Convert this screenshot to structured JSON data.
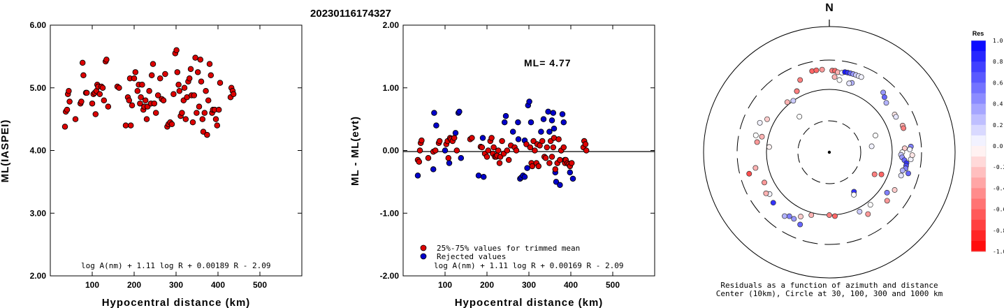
{
  "title": "20230116174327",
  "chart_data": [
    {
      "type": "scatter",
      "xlabel": "Hypocentral distance (km)",
      "ylabel": "ML(IASPEI)",
      "xticks": [
        "100",
        "200",
        "300",
        "400",
        "500"
      ],
      "yticks": [
        "2.00",
        "3.00",
        "4.00",
        "5.00",
        "6.00"
      ],
      "xlim": [
        0,
        600
      ],
      "ylim": [
        2,
        6
      ],
      "formula": "log A(nm) + 1.11 log R + 0.00189 R - 2.09",
      "point_color": "#dd0000",
      "points": [
        [
          35,
          4.38
        ],
        [
          37,
          4.62
        ],
        [
          40,
          4.65
        ],
        [
          42,
          4.9
        ],
        [
          44,
          4.95
        ],
        [
          46,
          4.78
        ],
        [
          60,
          4.5
        ],
        [
          72,
          4.75
        ],
        [
          74,
          4.78
        ],
        [
          77,
          5.4
        ],
        [
          79,
          5.2
        ],
        [
          85,
          4.92
        ],
        [
          87,
          4.92
        ],
        [
          100,
          4.75
        ],
        [
          103,
          4.9
        ],
        [
          106,
          4.92
        ],
        [
          108,
          4.58
        ],
        [
          110,
          4.95
        ],
        [
          112,
          5.05
        ],
        [
          114,
          5.02
        ],
        [
          118,
          4.9
        ],
        [
          122,
          5.02
        ],
        [
          125,
          5.0
        ],
        [
          128,
          4.8
        ],
        [
          132,
          5.42
        ],
        [
          134,
          5.45
        ],
        [
          138,
          4.7
        ],
        [
          160,
          5.02
        ],
        [
          164,
          5.0
        ],
        [
          180,
          4.4
        ],
        [
          185,
          4.85
        ],
        [
          188,
          4.8
        ],
        [
          190,
          5.15
        ],
        [
          192,
          4.4
        ],
        [
          195,
          4.72
        ],
        [
          200,
          5.15
        ],
        [
          203,
          5.25
        ],
        [
          208,
          4.95
        ],
        [
          211,
          5.05
        ],
        [
          214,
          4.75
        ],
        [
          216,
          4.85
        ],
        [
          219,
          5.05
        ],
        [
          222,
          4.65
        ],
        [
          224,
          4.7
        ],
        [
          227,
          4.8
        ],
        [
          230,
          4.5
        ],
        [
          232,
          4.7
        ],
        [
          236,
          4.95
        ],
        [
          240,
          4.75
        ],
        [
          242,
          5.2
        ],
        [
          245,
          5.38
        ],
        [
          248,
          4.75
        ],
        [
          252,
          4.6
        ],
        [
          257,
          4.88
        ],
        [
          262,
          5.15
        ],
        [
          266,
          4.82
        ],
        [
          270,
          4.8
        ],
        [
          274,
          5.22
        ],
        [
          279,
          4.38
        ],
        [
          282,
          4.42
        ],
        [
          286,
          4.45
        ],
        [
          290,
          4.42
        ],
        [
          294,
          4.9
        ],
        [
          298,
          5.55
        ],
        [
          301,
          5.6
        ],
        [
          303,
          5.25
        ],
        [
          306,
          5.05
        ],
        [
          308,
          4.95
        ],
        [
          311,
          4.55
        ],
        [
          314,
          4.6
        ],
        [
          318,
          4.8
        ],
        [
          320,
          5.0
        ],
        [
          323,
          4.5
        ],
        [
          326,
          4.85
        ],
        [
          329,
          5.1
        ],
        [
          332,
          5.15
        ],
        [
          335,
          5.3
        ],
        [
          337,
          4.88
        ],
        [
          340,
          4.45
        ],
        [
          343,
          4.88
        ],
        [
          346,
          5.48
        ],
        [
          349,
          4.6
        ],
        [
          352,
          5.25
        ],
        [
          355,
          4.7
        ],
        [
          358,
          5.45
        ],
        [
          360,
          5.1
        ],
        [
          363,
          4.5
        ],
        [
          365,
          4.3
        ],
        [
          368,
          4.6
        ],
        [
          371,
          4.95
        ],
        [
          374,
          4.25
        ],
        [
          377,
          4.8
        ],
        [
          380,
          5.38
        ],
        [
          383,
          5.2
        ],
        [
          386,
          4.6
        ],
        [
          388,
          4.65
        ],
        [
          392,
          4.65
        ],
        [
          395,
          4.5
        ],
        [
          398,
          4.4
        ],
        [
          402,
          4.65
        ],
        [
          405,
          5.08
        ],
        [
          430,
          4.85
        ],
        [
          432,
          5.0
        ],
        [
          435,
          4.95
        ],
        [
          437,
          4.9
        ]
      ]
    },
    {
      "type": "scatter",
      "xlabel": "Hypocentral distance (km)",
      "ylabel": "ML - ML(evt)",
      "xticks": [
        "100",
        "200",
        "300",
        "400",
        "500"
      ],
      "yticks": [
        "-2.00",
        "-1.00",
        "0.00",
        "1.00",
        "2.00"
      ],
      "xlim": [
        0,
        600
      ],
      "ylim": [
        -2,
        2
      ],
      "ml_label": "ML= 4.77",
      "formula": "log A(nm) + 1.11 log R + 0.00169 R - 2.09",
      "legend": [
        {
          "name": "25%-75% values for trimmed mean",
          "color": "#dd0000"
        },
        {
          "name": "Rejected values",
          "color": "#0000cc"
        }
      ],
      "red_points": [
        [
          35,
          -0.15
        ],
        [
          38,
          -0.18
        ],
        [
          40,
          0.0
        ],
        [
          42,
          0.12
        ],
        [
          44,
          0.16
        ],
        [
          60,
          -0.12
        ],
        [
          72,
          -0.02
        ],
        [
          77,
          0.0
        ],
        [
          85,
          0.12
        ],
        [
          87,
          0.15
        ],
        [
          103,
          0.1
        ],
        [
          106,
          0.15
        ],
        [
          108,
          -0.12
        ],
        [
          112,
          0.2
        ],
        [
          114,
          0.18
        ],
        [
          118,
          0.15
        ],
        [
          122,
          0.2
        ],
        [
          128,
          0.0
        ],
        [
          160,
          0.18
        ],
        [
          164,
          0.2
        ],
        [
          185,
          0.06
        ],
        [
          188,
          0.05
        ],
        [
          195,
          -0.05
        ],
        [
          200,
          -0.1
        ],
        [
          203,
          0.0
        ],
        [
          208,
          0.15
        ],
        [
          211,
          0.2
        ],
        [
          214,
          -0.05
        ],
        [
          216,
          0.05
        ],
        [
          219,
          -0.1
        ],
        [
          222,
          -0.1
        ],
        [
          224,
          -0.08
        ],
        [
          227,
          0.0
        ],
        [
          230,
          -0.2
        ],
        [
          232,
          -0.1
        ],
        [
          236,
          0.15
        ],
        [
          240,
          -0.05
        ],
        [
          248,
          0.0
        ],
        [
          252,
          -0.15
        ],
        [
          257,
          0.08
        ],
        [
          266,
          0.05
        ],
        [
          270,
          0.0
        ],
        [
          294,
          0.1
        ],
        [
          303,
          0.05
        ],
        [
          306,
          -0.2
        ],
        [
          308,
          -0.25
        ],
        [
          311,
          0.15
        ],
        [
          314,
          0.0
        ],
        [
          318,
          -0.2
        ],
        [
          320,
          0.1
        ],
        [
          323,
          -0.25
        ],
        [
          326,
          0.08
        ],
        [
          332,
          0.15
        ],
        [
          337,
          -0.1
        ],
        [
          340,
          -0.12
        ],
        [
          343,
          0.05
        ],
        [
          349,
          -0.2
        ],
        [
          352,
          0.15
        ],
        [
          355,
          -0.1
        ],
        [
          358,
          0.05
        ],
        [
          360,
          0.2
        ],
        [
          363,
          -0.3
        ],
        [
          368,
          -0.2
        ],
        [
          371,
          0.18
        ],
        [
          374,
          -0.15
        ],
        [
          377,
          0.0
        ],
        [
          383,
          0.05
        ],
        [
          386,
          -0.2
        ],
        [
          388,
          -0.15
        ],
        [
          392,
          -0.2
        ],
        [
          395,
          -0.22
        ],
        [
          398,
          -0.25
        ],
        [
          402,
          -0.2
        ],
        [
          430,
          0.05
        ],
        [
          432,
          0.15
        ],
        [
          435,
          0.1
        ],
        [
          437,
          0.0
        ]
      ],
      "blue_points": [
        [
          35,
          -0.4
        ],
        [
          72,
          -0.3
        ],
        [
          74,
          0.6
        ],
        [
          79,
          0.4
        ],
        [
          100,
          0.0
        ],
        [
          110,
          -0.2
        ],
        [
          125,
          0.28
        ],
        [
          132,
          0.6
        ],
        [
          134,
          0.62
        ],
        [
          138,
          -0.12
        ],
        [
          180,
          -0.4
        ],
        [
          190,
          0.2
        ],
        [
          192,
          -0.42
        ],
        [
          242,
          0.45
        ],
        [
          245,
          0.55
        ],
        [
          262,
          0.3
        ],
        [
          274,
          0.45
        ],
        [
          279,
          -0.45
        ],
        [
          282,
          -0.43
        ],
        [
          286,
          -0.4
        ],
        [
          290,
          -0.42
        ],
        [
          298,
          0.72
        ],
        [
          301,
          0.78
        ],
        [
          305,
          0.45
        ],
        [
          329,
          0.3
        ],
        [
          335,
          0.5
        ],
        [
          346,
          0.62
        ],
        [
          349,
          0.3
        ],
        [
          355,
          0.48
        ],
        [
          358,
          0.6
        ],
        [
          360,
          0.35
        ],
        [
          363,
          -0.35
        ],
        [
          365,
          -0.5
        ],
        [
          368,
          -0.2
        ],
        [
          374,
          -0.55
        ],
        [
          377,
          0.0
        ],
        [
          380,
          0.58
        ],
        [
          383,
          0.45
        ],
        [
          386,
          -0.15
        ],
        [
          398,
          -0.35
        ],
        [
          405,
          -0.45
        ],
        [
          296,
          -0.28
        ],
        [
          290,
          0.16
        ],
        [
          275,
          0.18
        ]
      ]
    },
    {
      "type": "scatter",
      "title": "N",
      "caption_line1": "Residuals as a function of azimuth and distance",
      "caption_line2": "Center (10km), Circle at 30, 100, 300 and 1000 km",
      "colorbar_title": "Res",
      "colorbar_ticks": [
        "1.0",
        "0.8",
        "0.6",
        "0.4",
        "0.2",
        "0.0",
        "-0.2",
        "-0.4",
        "-0.6",
        "-0.8",
        "-1.0"
      ],
      "positive_color": "#0000ff",
      "negative_color": "#ff0000",
      "stations": [
        [
          -28,
          0.55,
          0.15
        ],
        [
          -22,
          0.62,
          -0.5
        ],
        [
          -12,
          0.66,
          -0.6
        ],
        [
          -9,
          0.66,
          -0.6
        ],
        [
          -5,
          0.66,
          -0.4
        ],
        [
          2,
          0.65,
          -0.5
        ],
        [
          4,
          0.65,
          -0.6
        ],
        [
          6,
          0.64,
          -0.3
        ],
        [
          9,
          0.64,
          0.05
        ],
        [
          11,
          0.65,
          0.9
        ],
        [
          13,
          0.65,
          0.8
        ],
        [
          15,
          0.65,
          0.6
        ],
        [
          17,
          0.65,
          0.4
        ],
        [
          19,
          0.65,
          0.2
        ],
        [
          21,
          0.65,
          0.1
        ],
        [
          23,
          0.65,
          0.05
        ],
        [
          4,
          0.6,
          -0.3
        ],
        [
          8,
          0.58,
          0.0
        ],
        [
          18,
          0.58,
          0.3
        ],
        [
          16,
          0.57,
          0.1
        ],
        [
          42,
          0.64,
          0.4
        ],
        [
          45,
          0.62,
          0.6
        ],
        [
          49,
          0.6,
          0.3
        ],
        [
          60,
          0.6,
          -0.1
        ],
        [
          62,
          0.6,
          0.1
        ],
        [
          70,
          0.62,
          -0.3
        ],
        [
          72,
          0.62,
          -0.5
        ],
        [
          86,
          0.65,
          0.5
        ],
        [
          87,
          0.6,
          -0.2
        ],
        [
          90,
          0.58,
          0.0
        ],
        [
          92,
          0.57,
          0.2
        ],
        [
          94,
          0.58,
          0.4
        ],
        [
          96,
          0.6,
          0.6
        ],
        [
          98,
          0.62,
          0.8
        ],
        [
          100,
          0.62,
          0.7
        ],
        [
          102,
          0.62,
          0.5
        ],
        [
          104,
          0.6,
          0.3
        ],
        [
          95,
          0.65,
          0.05
        ],
        [
          92,
          0.66,
          -0.1
        ],
        [
          88,
          0.64,
          0.05
        ],
        [
          105,
          0.65,
          0.6
        ],
        [
          108,
          0.6,
          0.1
        ],
        [
          120,
          0.6,
          -0.2
        ],
        [
          125,
          0.56,
          0.5
        ],
        [
          130,
          0.6,
          -0.4
        ],
        [
          142,
          0.53,
          0.0
        ],
        [
          148,
          0.58,
          -0.4
        ],
        [
          153,
          0.53,
          0.2
        ],
        [
          175,
          0.51,
          -0.6
        ],
        [
          180,
          0.5,
          -0.5
        ],
        [
          196,
          0.52,
          -0.3
        ],
        [
          204,
          0.56,
          -0.2
        ],
        [
          202,
          0.62,
          0.6
        ],
        [
          208,
          0.6,
          0.4
        ],
        [
          212,
          0.6,
          0.5
        ],
        [
          215,
          0.62,
          0.3
        ],
        [
          228,
          0.6,
          0.8
        ],
        [
          235,
          0.58,
          0.05
        ],
        [
          237,
          0.6,
          -0.3
        ],
        [
          245,
          0.57,
          -0.4
        ],
        [
          255,
          0.66,
          -0.7
        ],
        [
          258,
          0.6,
          -0.3
        ],
        [
          275,
          0.48,
          -0.05
        ],
        [
          278,
          0.58,
          -0.4
        ],
        [
          283,
          0.55,
          -0.3
        ],
        [
          283,
          0.6,
          0.0
        ],
        [
          293,
          0.6,
          0.05
        ],
        [
          298,
          0.56,
          -0.2
        ],
        [
          320,
          0.52,
          -0.3
        ],
        [
          325,
          0.5,
          0.2
        ],
        [
          332,
          0.55,
          -0.5
        ],
        [
          320,
          0.37,
          0.0
        ],
        [
          70,
          0.39,
          0.0
        ],
        [
          82,
          0.34,
          0.05
        ],
        [
          113,
          0.45,
          -0.6
        ],
        [
          116,
          0.4,
          -0.5
        ],
        [
          148,
          0.37,
          0.8
        ],
        [
          150,
          0.39,
          0.0
        ]
      ]
    }
  ]
}
